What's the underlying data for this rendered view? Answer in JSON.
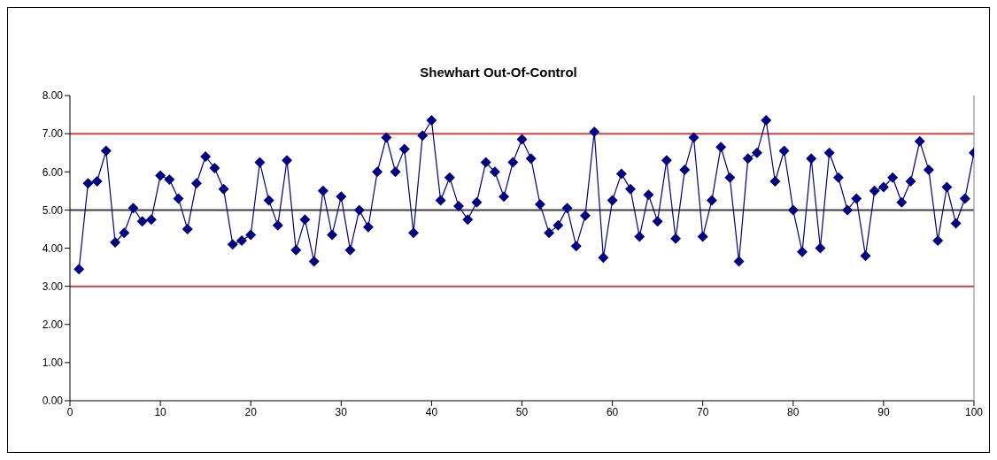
{
  "chart_data": {
    "type": "line",
    "title": "Shewhart Out-Of-Control",
    "x": [
      1,
      2,
      3,
      4,
      5,
      6,
      7,
      8,
      9,
      10,
      11,
      12,
      13,
      14,
      15,
      16,
      17,
      18,
      19,
      20,
      21,
      22,
      23,
      24,
      25,
      26,
      27,
      28,
      29,
      30,
      31,
      32,
      33,
      34,
      35,
      36,
      37,
      38,
      39,
      40,
      41,
      42,
      43,
      44,
      45,
      46,
      47,
      48,
      49,
      50,
      51,
      52,
      53,
      54,
      55,
      56,
      57,
      58,
      59,
      60,
      61,
      62,
      63,
      64,
      65,
      66,
      67,
      68,
      69,
      70,
      71,
      72,
      73,
      74,
      75,
      76,
      77,
      78,
      79,
      80,
      81,
      82,
      83,
      84,
      85,
      86,
      87,
      88,
      89,
      90,
      91,
      92,
      93,
      94,
      95,
      96,
      97,
      98,
      99,
      100
    ],
    "series": [
      {
        "color": "#000080",
        "values": [
          3.45,
          5.7,
          5.75,
          6.55,
          4.15,
          4.4,
          5.05,
          4.7,
          4.75,
          5.9,
          5.8,
          5.3,
          4.5,
          5.7,
          6.4,
          6.1,
          5.55,
          4.1,
          4.2,
          4.35,
          6.25,
          5.25,
          4.6,
          6.3,
          3.95,
          4.75,
          3.65,
          5.5,
          4.35,
          5.35,
          3.95,
          5.0,
          4.55,
          6.0,
          6.9,
          6.0,
          6.6,
          4.4,
          6.95,
          7.35,
          5.25,
          5.85,
          5.1,
          4.75,
          5.2,
          6.25,
          6.0,
          5.35,
          6.25,
          6.85,
          6.35,
          5.15,
          4.4,
          4.6,
          5.05,
          4.05,
          4.85,
          7.05,
          3.75,
          5.25,
          5.95,
          5.55,
          4.3,
          5.4,
          4.7,
          6.3,
          4.25,
          6.05,
          6.9,
          4.3,
          5.25,
          6.65,
          5.85,
          3.65,
          6.35,
          6.5,
          7.35,
          5.75,
          6.55,
          5.0,
          3.9,
          6.35,
          4.0,
          6.5,
          5.85,
          5.0,
          5.3,
          3.8,
          5.5,
          5.6,
          5.85,
          5.2,
          5.75,
          6.8,
          6.05,
          4.2,
          5.6,
          4.65,
          5.3,
          6.5
        ]
      }
    ],
    "xlim": [
      0,
      100
    ],
    "xticks": [
      0,
      10,
      20,
      30,
      40,
      50,
      60,
      70,
      80,
      90,
      100
    ],
    "ylim": [
      0,
      8
    ],
    "yticks": [
      {
        "value": 0,
        "label": "0.00"
      },
      {
        "value": 1,
        "label": "1.00"
      },
      {
        "value": 2,
        "label": "2.00"
      },
      {
        "value": 3,
        "label": "3.00"
      },
      {
        "value": 4,
        "label": "4.00"
      },
      {
        "value": 5,
        "label": "5.00"
      },
      {
        "value": 6,
        "label": "6.00"
      },
      {
        "value": 7,
        "label": "7.00"
      },
      {
        "value": 8,
        "label": "8.00"
      }
    ],
    "ref_lines": [
      {
        "axis": "y",
        "value": 7,
        "color": "#d04040"
      },
      {
        "axis": "y",
        "value": 5,
        "color": "#404040"
      },
      {
        "axis": "y",
        "value": 3,
        "color": "#d04040"
      }
    ],
    "marker": "diamond",
    "line_style": "solid",
    "grid": false,
    "legend": false
  }
}
